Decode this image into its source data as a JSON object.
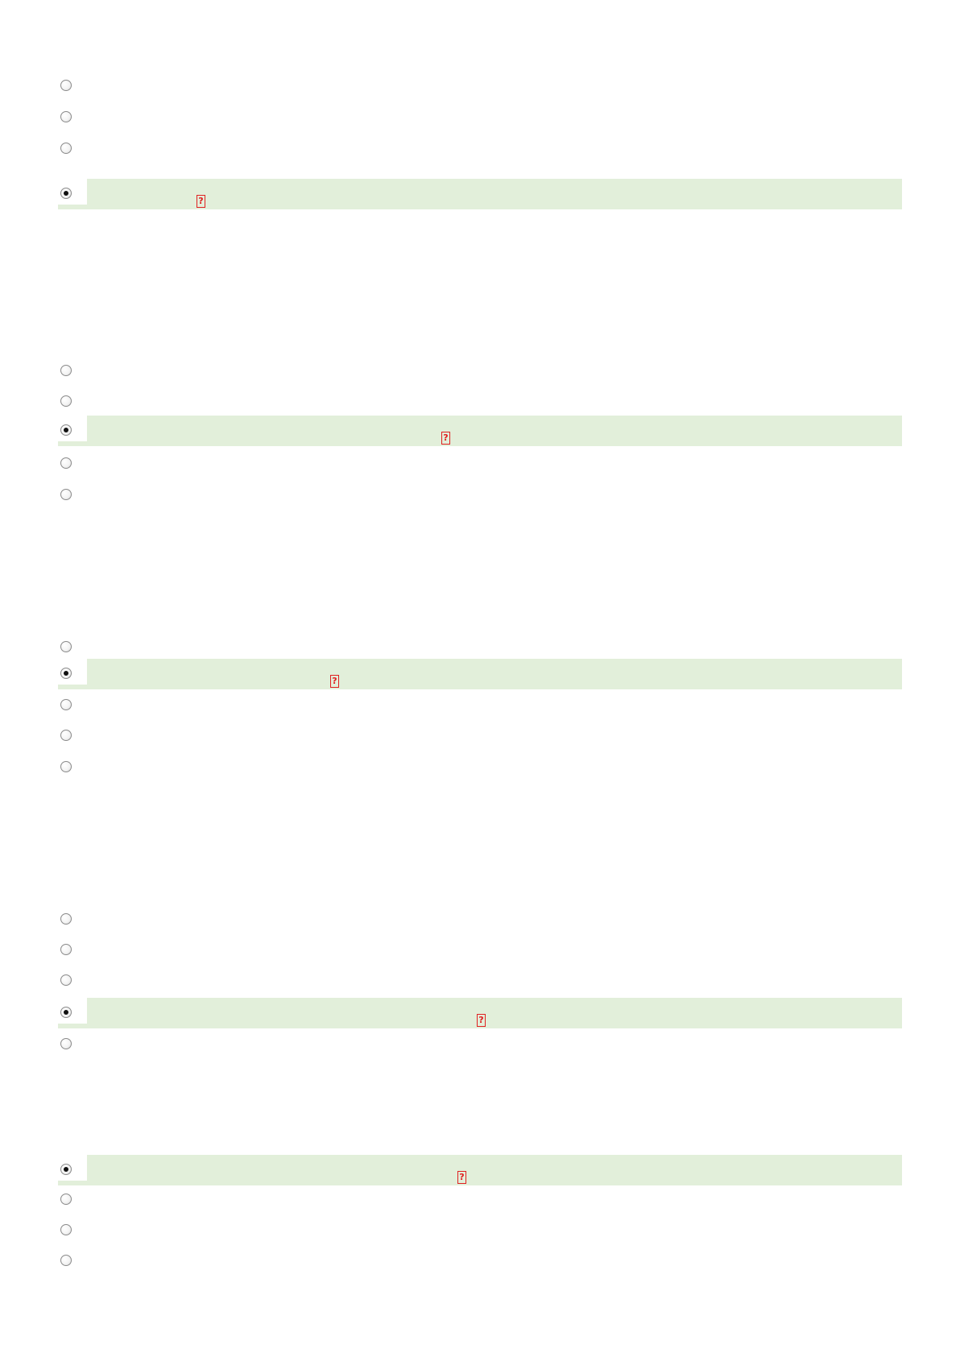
{
  "questions": [
    {
      "options": [
        {
          "label": "",
          "selected": false
        },
        {
          "label": "",
          "selected": false
        },
        {
          "label": "",
          "selected": false
        },
        {
          "label": "",
          "selected": true,
          "mark": "?"
        }
      ]
    },
    {
      "options": [
        {
          "label": "",
          "selected": false
        },
        {
          "label": "",
          "selected": false
        },
        {
          "label": "",
          "selected": true,
          "mark": "?"
        },
        {
          "label": "",
          "selected": false
        },
        {
          "label": "",
          "selected": false
        }
      ]
    },
    {
      "options": [
        {
          "label": "",
          "selected": false
        },
        {
          "label": "",
          "selected": true,
          "mark": "?"
        },
        {
          "label": "",
          "selected": false
        },
        {
          "label": "",
          "selected": false
        },
        {
          "label": "",
          "selected": false
        }
      ]
    },
    {
      "options": [
        {
          "label": "",
          "selected": false
        },
        {
          "label": "",
          "selected": false
        },
        {
          "label": "",
          "selected": false
        },
        {
          "label": "",
          "selected": true,
          "mark": "?"
        },
        {
          "label": "",
          "selected": false
        }
      ]
    },
    {
      "options": [
        {
          "label": "",
          "selected": true,
          "mark": "?"
        },
        {
          "label": "",
          "selected": false
        },
        {
          "label": "",
          "selected": false
        },
        {
          "label": "",
          "selected": false
        }
      ]
    }
  ]
}
